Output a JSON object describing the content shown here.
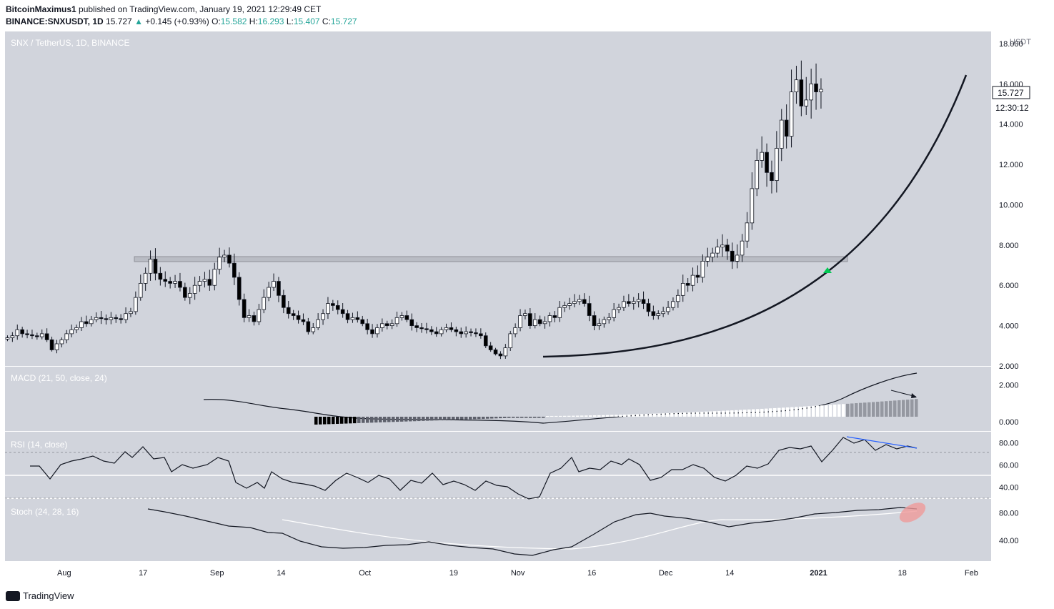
{
  "header": {
    "author": "BitcoinMaximus1",
    "published_text": "published on TradingView.com, January 19, 2021 12:29:49 CET",
    "symbol": "BINANCE:SNXUSDT, 1D",
    "last": "15.727",
    "change": "+0.145 (+0.93%)",
    "o_label": "O:",
    "o_value": "15.582",
    "h_label": "H:",
    "h_value": "16.293",
    "l_label": "L:",
    "l_value": "15.407",
    "c_label": "C:",
    "c_value": "15.727"
  },
  "footer": {
    "brand": "TradingView"
  },
  "colors": {
    "pane_bg": "#d1d4dc",
    "candle_up": "#ffffff",
    "candle_down": "#000000",
    "arrow": "#00c853",
    "rsi_trend": "#2962ff",
    "stoch_highlight": "#ef9a9a"
  },
  "chart_data": [
    {
      "type": "candlestick",
      "title": "SNX / TetherUS, 1D, BINANCE",
      "y_unit": "USDT",
      "ylim": [
        2,
        18.6
      ],
      "yticks": [
        "18.000",
        "16.000",
        "14.000",
        "12.000",
        "10.000",
        "8.000",
        "6.000",
        "4.000",
        "2.000"
      ],
      "price_label": "15.727",
      "countdown_label": "12:30:12",
      "x_start": "2020-07-20",
      "x_end": "2021-02-05",
      "xticks": [
        {
          "date": "2020-08-01",
          "label": "Aug"
        },
        {
          "date": "2020-08-17",
          "label": "17"
        },
        {
          "date": "2020-09-01",
          "label": "Sep"
        },
        {
          "date": "2020-09-14",
          "label": "14"
        },
        {
          "date": "2020-10-01",
          "label": "Oct"
        },
        {
          "date": "2020-10-19",
          "label": "19"
        },
        {
          "date": "2020-11-01",
          "label": "Nov"
        },
        {
          "date": "2020-11-16",
          "label": "16"
        },
        {
          "date": "2020-12-01",
          "label": "Dec"
        },
        {
          "date": "2020-12-14",
          "label": "14"
        },
        {
          "date": "2021-01-01",
          "label": "2021"
        },
        {
          "date": "2021-01-18",
          "label": "18"
        },
        {
          "date": "2021-02-01",
          "label": "Feb"
        }
      ],
      "series": [
        {
          "name": "SNXUSDT",
          "close": [
            3.4,
            3.5,
            3.8,
            3.6,
            3.55,
            3.5,
            3.45,
            3.6,
            3.3,
            2.8,
            3.1,
            3.3,
            3.6,
            3.8,
            3.9,
            4.2,
            4.1,
            4.3,
            4.4,
            4.35,
            4.3,
            4.4,
            4.35,
            4.3,
            4.6,
            4.7,
            5.4,
            6.1,
            6.6,
            7.3,
            6.6,
            6.3,
            6.2,
            6.1,
            6.2,
            5.9,
            5.4,
            5.6,
            6.0,
            6.2,
            6.3,
            6.0,
            6.8,
            7.4,
            7.5,
            7.1,
            6.4,
            5.3,
            4.4,
            4.5,
            4.2,
            4.8,
            5.4,
            5.9,
            6.2,
            5.5,
            4.9,
            4.6,
            4.5,
            4.3,
            4.2,
            3.7,
            3.9,
            4.3,
            4.6,
            5.1,
            5.0,
            4.8,
            4.6,
            4.3,
            4.4,
            4.3,
            4.1,
            3.8,
            3.6,
            3.9,
            4.1,
            4.0,
            4.1,
            4.4,
            4.5,
            4.3,
            4.0,
            3.9,
            3.85,
            3.8,
            3.7,
            3.6,
            3.8,
            3.9,
            3.8,
            3.7,
            3.6,
            3.7,
            3.65,
            3.6,
            3.5,
            3.0,
            2.8,
            2.6,
            2.5,
            2.9,
            3.6,
            3.9,
            4.5,
            4.6,
            4.0,
            4.3,
            4.1,
            4.2,
            4.5,
            4.4,
            4.9,
            5.0,
            5.1,
            5.2,
            5.3,
            5.1,
            4.5,
            4.0,
            4.1,
            4.3,
            4.4,
            4.8,
            4.9,
            5.2,
            5.1,
            5.2,
            5.3,
            5.1,
            4.7,
            4.5,
            4.6,
            4.7,
            4.9,
            5.2,
            5.5,
            6.1,
            6.0,
            6.5,
            6.4,
            7.2,
            7.4,
            7.6,
            7.9,
            8.0,
            7.7,
            7.2,
            7.5,
            8.2,
            9.1,
            10.8,
            12.2,
            12.6,
            11.6,
            11.2,
            12.8,
            14.2,
            13.4,
            15.6,
            16.2,
            14.9,
            15.2,
            16.0,
            15.6,
            15.727
          ]
        }
      ]
    },
    {
      "type": "line",
      "title": "MACD (21, 50, close, 24)",
      "yticks": [
        "2.000",
        "0.000"
      ],
      "ylim": [
        -0.5,
        3.0
      ]
    },
    {
      "type": "line",
      "title": "RSI (14, close)",
      "yticks": [
        "80.00",
        "60.00",
        "40.00"
      ],
      "ylim": [
        30,
        90
      ]
    },
    {
      "type": "line",
      "title": "Stoch (24, 28, 16)",
      "yticks": [
        "80.00",
        "40.00"
      ],
      "ylim": [
        10,
        100
      ]
    }
  ]
}
